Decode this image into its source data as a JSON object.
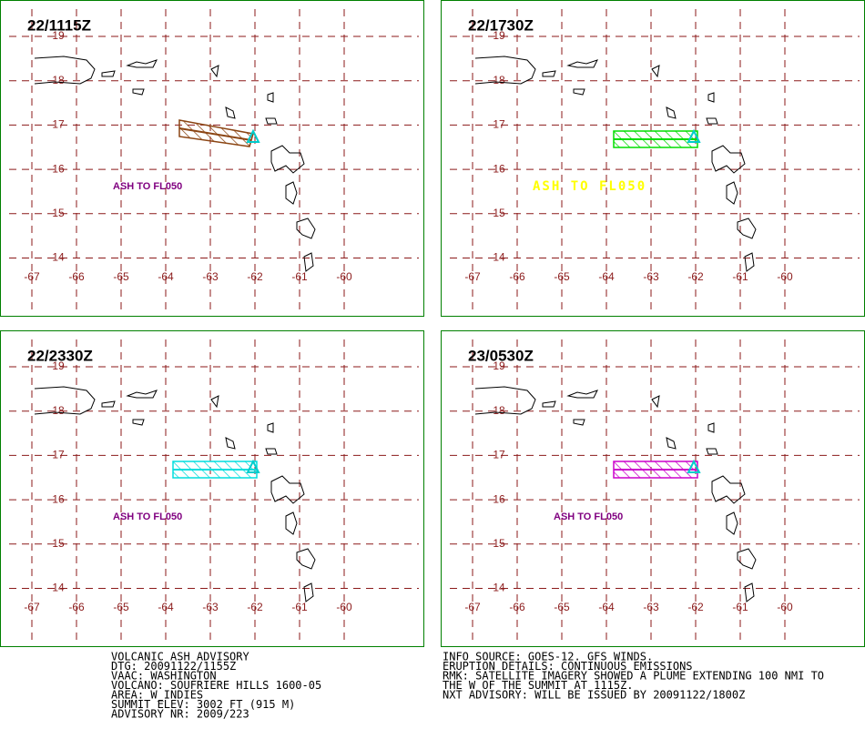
{
  "panels": [
    {
      "time": "22/1115Z",
      "label": "ASH TO FL050",
      "ash_color": "#8b4513",
      "label_color": "#800080"
    },
    {
      "time": "22/1730Z",
      "label": "ASH TO FL050",
      "ash_color": "#00dd00",
      "label_color": "#ffff00"
    },
    {
      "time": "22/2330Z",
      "label": "ASH TO FL050",
      "ash_color": "#00dddd",
      "label_color": "#800080"
    },
    {
      "time": "23/0530Z",
      "label": "ASH TO FL050",
      "ash_color": "#cc00cc",
      "label_color": "#800080"
    }
  ],
  "lat_labels": [
    19,
    18,
    17,
    16,
    15,
    14
  ],
  "lon_labels": [
    -67,
    -66,
    -65,
    -64,
    -63,
    -62,
    -61,
    -60
  ],
  "advisory_left": [
    "VOLCANIC ASH ADVISORY",
    "DTG: 20091122/1155Z",
    "VAAC: WASHINGTON",
    "VOLCANO: SOUFRIERE HILLS 1600-05",
    "AREA: W_INDIES",
    "SUMMIT ELEV: 3002 FT (915 M)",
    "ADVISORY NR: 2009/223"
  ],
  "advisory_right": [
    "INFO SOURCE: GOES-12. GFS WINDS.",
    "ERUPTION DETAILS: CONTINUOUS EMISSIONS",
    "RMK: SATELLITE IMAGERY SHOWED A PLUME EXTENDING 100 NMI TO",
    "THE W OF THE SUMMIT AT 1115Z.",
    "NXT ADVISORY: WILL BE ISSUED BY 20091122/1800Z"
  ]
}
